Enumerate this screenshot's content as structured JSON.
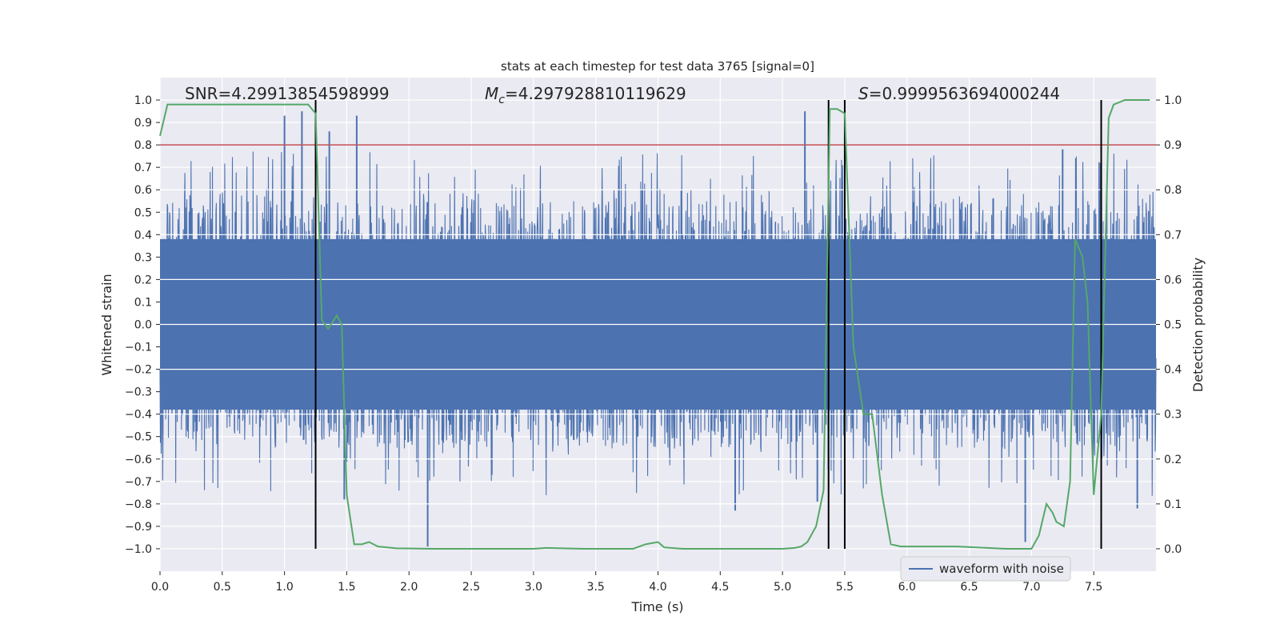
{
  "chart_data": {
    "type": "line",
    "title": "stats at each timestep for test data 3765 [signal=0]",
    "xlabel": "Time (s)",
    "ylabel_left": "Whitened strain",
    "ylabel_right": "Detection probability",
    "xlim": [
      0.0,
      8.0
    ],
    "ylim_left": [
      -1.1,
      1.1
    ],
    "ylim_right": [
      -0.05,
      1.05
    ],
    "xticks": [
      "0.0",
      "0.5",
      "1.0",
      "1.5",
      "2.0",
      "2.5",
      "3.0",
      "3.5",
      "4.0",
      "4.5",
      "5.0",
      "5.5",
      "6.0",
      "6.5",
      "7.0",
      "7.5"
    ],
    "yticks_left": [
      "1.0",
      "0.9",
      "0.8",
      "0.7",
      "0.6",
      "0.5",
      "0.4",
      "0.3",
      "0.2",
      "0.1",
      "0.0",
      "-0.1",
      "-0.2",
      "-0.3",
      "-0.4",
      "-0.5",
      "-0.6",
      "-0.7",
      "-0.8",
      "-0.9",
      "-1.0"
    ],
    "yticks_right": [
      "1.0",
      "0.9",
      "0.8",
      "0.7",
      "0.6",
      "0.5",
      "0.4",
      "0.3",
      "0.2",
      "0.1",
      "0.0"
    ],
    "annotations": {
      "snr": "SNR=4.29913854598999",
      "mc_symbol": "M",
      "mc_sub": "c",
      "mc_value": "=4.297928810119629",
      "s_symbol": "S",
      "s_value": "=0.9999563694000244"
    },
    "legend": {
      "label": "waveform with noise",
      "location": "lower-right"
    },
    "threshold_right": 0.9,
    "vertical_lines": [
      1.25,
      5.37,
      5.5,
      7.56
    ],
    "waveform": {
      "name": "waveform with noise",
      "color": "#4c72b0",
      "core_amplitude": 0.38,
      "typical_peak": 0.55,
      "spikes": [
        {
          "t": 1.0,
          "v": 0.93
        },
        {
          "t": 1.14,
          "v": 0.95
        },
        {
          "t": 1.36,
          "v": 0.86
        },
        {
          "t": 1.58,
          "v": 0.93
        },
        {
          "t": 2.15,
          "v": -0.99
        },
        {
          "t": 5.18,
          "v": 0.95
        },
        {
          "t": 4.62,
          "v": -0.83
        },
        {
          "t": 1.48,
          "v": -0.78
        },
        {
          "t": 7.25,
          "v": 0.78
        },
        {
          "t": 6.95,
          "v": -0.97
        },
        {
          "t": 7.85,
          "v": -0.82
        },
        {
          "t": 5.28,
          "v": -0.79
        }
      ]
    },
    "detection_probability": {
      "name": "detection probability",
      "color": "#55a868",
      "t": [
        0.0,
        0.06,
        0.2,
        0.4,
        0.6,
        0.8,
        1.0,
        1.1,
        1.19,
        1.25,
        1.3,
        1.35,
        1.42,
        1.46,
        1.5,
        1.56,
        1.62,
        1.68,
        1.75,
        1.9,
        2.2,
        2.6,
        3.0,
        3.1,
        3.4,
        3.8,
        3.9,
        4.0,
        4.05,
        4.2,
        4.6,
        5.0,
        5.1,
        5.15,
        5.2,
        5.27,
        5.33,
        5.38,
        5.44,
        5.5,
        5.57,
        5.65,
        5.72,
        5.8,
        5.87,
        5.95,
        6.2,
        6.4,
        6.8,
        7.0,
        7.06,
        7.12,
        7.17,
        7.2,
        7.26,
        7.31,
        7.35,
        7.41,
        7.45,
        7.5,
        7.56,
        7.62,
        7.66,
        7.75,
        7.95
      ],
      "p": [
        0.92,
        0.99,
        0.99,
        0.99,
        0.99,
        0.99,
        0.99,
        0.99,
        0.99,
        0.97,
        0.51,
        0.49,
        0.52,
        0.5,
        0.12,
        0.01,
        0.01,
        0.015,
        0.005,
        0.001,
        0.0,
        0.0,
        0.0,
        0.002,
        0.0,
        0.0,
        0.01,
        0.015,
        0.003,
        0.0,
        0.0,
        0.0,
        0.002,
        0.005,
        0.015,
        0.05,
        0.13,
        0.98,
        0.98,
        0.97,
        0.45,
        0.3,
        0.3,
        0.12,
        0.01,
        0.005,
        0.005,
        0.005,
        0.0,
        0.0,
        0.03,
        0.1,
        0.08,
        0.06,
        0.05,
        0.15,
        0.69,
        0.65,
        0.55,
        0.12,
        0.3,
        0.96,
        0.99,
        1.0,
        1.0
      ]
    }
  }
}
